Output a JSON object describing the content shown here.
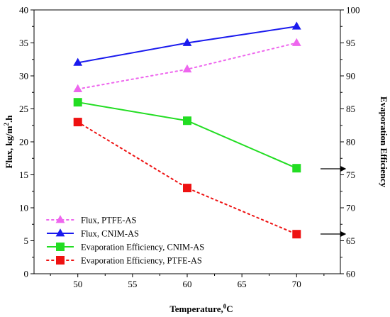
{
  "chart_data": {
    "type": "line",
    "x": [
      50,
      60,
      70
    ],
    "xlabel": "Temperature,",
    "xlabel_sup": "0",
    "xlabel_unit": "C",
    "ylabel": "Flux, kg/m",
    "ylabel_sup": "2",
    "ylabel_unit": ".h",
    "y2label": "Evaporation Efficiency",
    "xlim": [
      46,
      74
    ],
    "ylim": [
      0,
      40
    ],
    "y2lim": [
      60,
      100
    ],
    "xticks": [
      "50",
      "55",
      "60",
      "65",
      "70"
    ],
    "yticks": [
      "0",
      "5",
      "10",
      "15",
      "20",
      "25",
      "30",
      "35",
      "40"
    ],
    "y2ticks": [
      "60",
      "65",
      "70",
      "75",
      "80",
      "85",
      "90",
      "95",
      "100"
    ],
    "legend_position": "bottom-left",
    "series": [
      {
        "name": "Flux, PTFE-AS",
        "axis": "left",
        "values": [
          28,
          31,
          35
        ],
        "color": "#ee66ee",
        "marker": "triangle",
        "line": "dotted"
      },
      {
        "name": "Flux, CNIM-AS",
        "axis": "left",
        "values": [
          32,
          35,
          37.5
        ],
        "color": "#1a1aee",
        "marker": "triangle",
        "line": "solid"
      },
      {
        "name": "Evaporation Efficiency, CNIM-AS",
        "axis": "right",
        "values": [
          86,
          83.2,
          76
        ],
        "color": "#22dd22",
        "marker": "square",
        "line": "solid"
      },
      {
        "name": "Evaporation Efficiency, PTFE-AS",
        "axis": "right",
        "values": [
          83,
          73,
          66
        ],
        "color": "#ee1111",
        "marker": "square",
        "line": "dotted"
      }
    ]
  }
}
